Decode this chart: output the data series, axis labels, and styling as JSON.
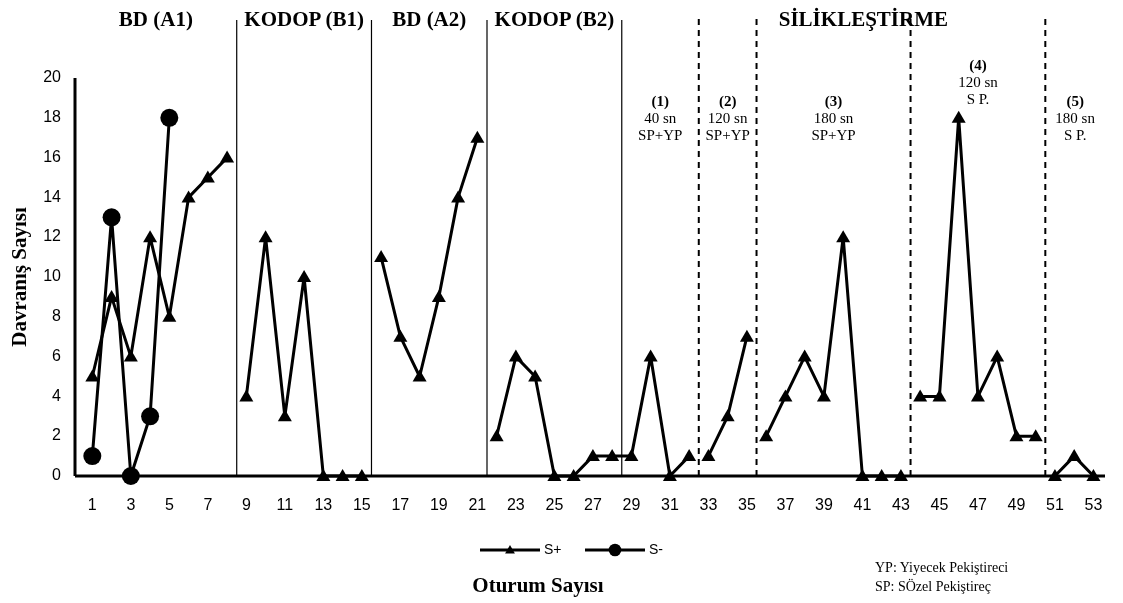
{
  "chart_data": {
    "type": "line",
    "xlabel": "Oturum Sayısı",
    "ylabel": "Davranış Sayısı",
    "xlim": [
      0.1,
      53.6
    ],
    "ylim": [
      0,
      20
    ],
    "xticks": [
      1,
      3,
      5,
      7,
      9,
      11,
      13,
      15,
      17,
      19,
      21,
      23,
      25,
      27,
      29,
      31,
      33,
      35,
      37,
      39,
      41,
      43,
      45,
      47,
      49,
      51,
      53
    ],
    "yticks": [
      0,
      2,
      4,
      6,
      8,
      10,
      12,
      14,
      16,
      18,
      20
    ],
    "grid": false,
    "legend": "bottom",
    "series": [
      {
        "name": "S+",
        "color": "#000000",
        "marker": "triangle",
        "line_style": "solid",
        "x": [
          1,
          2,
          3,
          4,
          5,
          6,
          7,
          8,
          8.5,
          9,
          10,
          11,
          12,
          13,
          14,
          15,
          15.5,
          16,
          17,
          18,
          19,
          20,
          21,
          21.5,
          22,
          23,
          24,
          25,
          26,
          27,
          28,
          29,
          30,
          31,
          32,
          32.5,
          33,
          34,
          35,
          35.5,
          36,
          37,
          38,
          39,
          40,
          41,
          42,
          43,
          43.5,
          44,
          45,
          46,
          47,
          48,
          49,
          50,
          50.5,
          51,
          52,
          53
        ],
        "values": [
          5,
          9,
          6,
          12,
          8,
          14,
          15,
          16,
          null,
          4,
          12,
          3,
          10,
          0,
          0,
          0,
          null,
          11,
          7,
          5,
          9,
          14,
          17,
          null,
          2,
          6,
          5,
          0,
          0,
          1,
          1,
          1,
          6,
          0,
          1,
          null,
          1,
          3,
          7,
          null,
          2,
          4,
          6,
          4,
          12,
          0,
          0,
          0,
          null,
          4,
          4,
          18,
          4,
          6,
          2,
          2,
          null,
          0,
          1,
          0
        ]
      },
      {
        "name": "S-",
        "color": "#000000",
        "marker": "circle",
        "x": [
          1,
          2,
          3,
          4,
          5
        ],
        "values": [
          1,
          13,
          0,
          3,
          18
        ]
      }
    ],
    "ref_lines": [
      {
        "axis": "x",
        "value": 8.5,
        "line_style": "solid"
      },
      {
        "axis": "x",
        "value": 15.5,
        "line_style": "solid"
      },
      {
        "axis": "x",
        "value": 21.5,
        "line_style": "solid"
      },
      {
        "axis": "x",
        "value": 28.5,
        "line_style": "solid"
      },
      {
        "axis": "x",
        "value": 32.5,
        "line_style": "dashed"
      },
      {
        "axis": "x",
        "value": 35.5,
        "line_style": "dashed"
      },
      {
        "axis": "x",
        "value": 43.5,
        "line_style": "dashed"
      },
      {
        "axis": "x",
        "value": 50.5,
        "line_style": "dashed"
      }
    ],
    "annotations": [
      "BD (A1)",
      "KODOP (B1)",
      "BD (A2)",
      "KODOP (B2)",
      "SİLİKLEŞTİRME",
      "(1)\n40 sn\nSP+YP",
      "(2)\n120 sn\nSP+YP",
      "(3)\n180 sn\nSP+YP",
      "(4)\n120 sn\nS P.",
      "(5)\n180 sn\nS P.",
      "YP: Yiyecek Pekiştireci",
      "SP: SÖzel Pekiştireç"
    ]
  }
}
